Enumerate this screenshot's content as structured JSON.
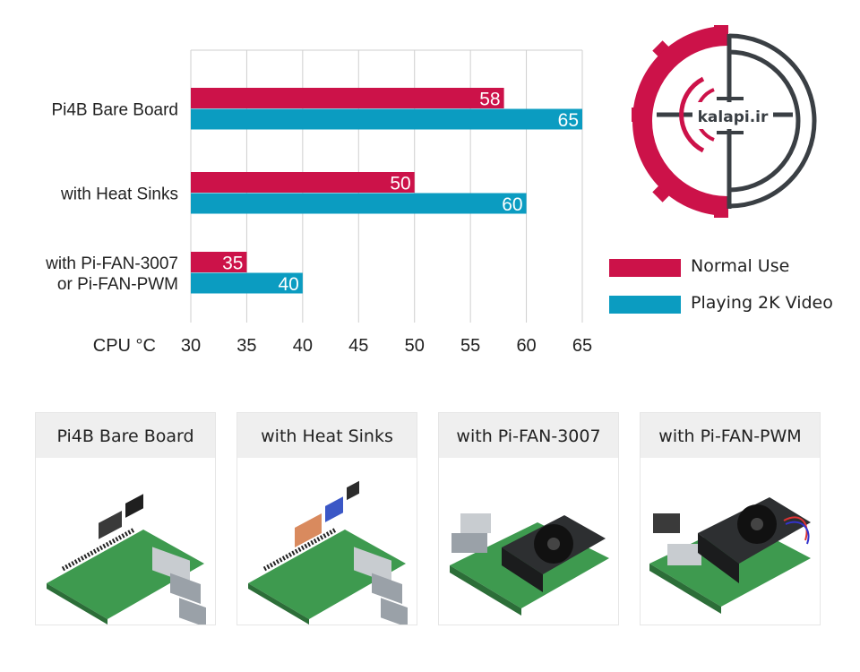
{
  "chart_data": {
    "type": "bar",
    "orientation": "horizontal",
    "xlabel": "CPU °C",
    "xlim": [
      30,
      65
    ],
    "xticks": [
      30,
      35,
      40,
      45,
      50,
      55,
      60,
      65
    ],
    "grid": true,
    "legend_position": "right",
    "categories": [
      [
        "Pi4B Bare Board"
      ],
      [
        "with Heat Sinks"
      ],
      [
        "with Pi-FAN-3007",
        "or Pi-FAN-PWM"
      ]
    ],
    "series": [
      {
        "name": "Normal Use",
        "color": "#cc1249",
        "values": [
          58,
          50,
          35
        ]
      },
      {
        "name": "Playing 2K Video",
        "color": "#0b9cc1",
        "values": [
          65,
          60,
          40
        ]
      }
    ]
  },
  "logo": {
    "text": "kalapi.ir"
  },
  "cards": [
    {
      "title": "Pi4B Bare Board",
      "product": "bare-board"
    },
    {
      "title": "with Heat Sinks",
      "product": "heat-sinks"
    },
    {
      "title": "with Pi-FAN-3007",
      "product": "fan-3007"
    },
    {
      "title": "with Pi-FAN-PWM",
      "product": "fan-pwm"
    }
  ]
}
